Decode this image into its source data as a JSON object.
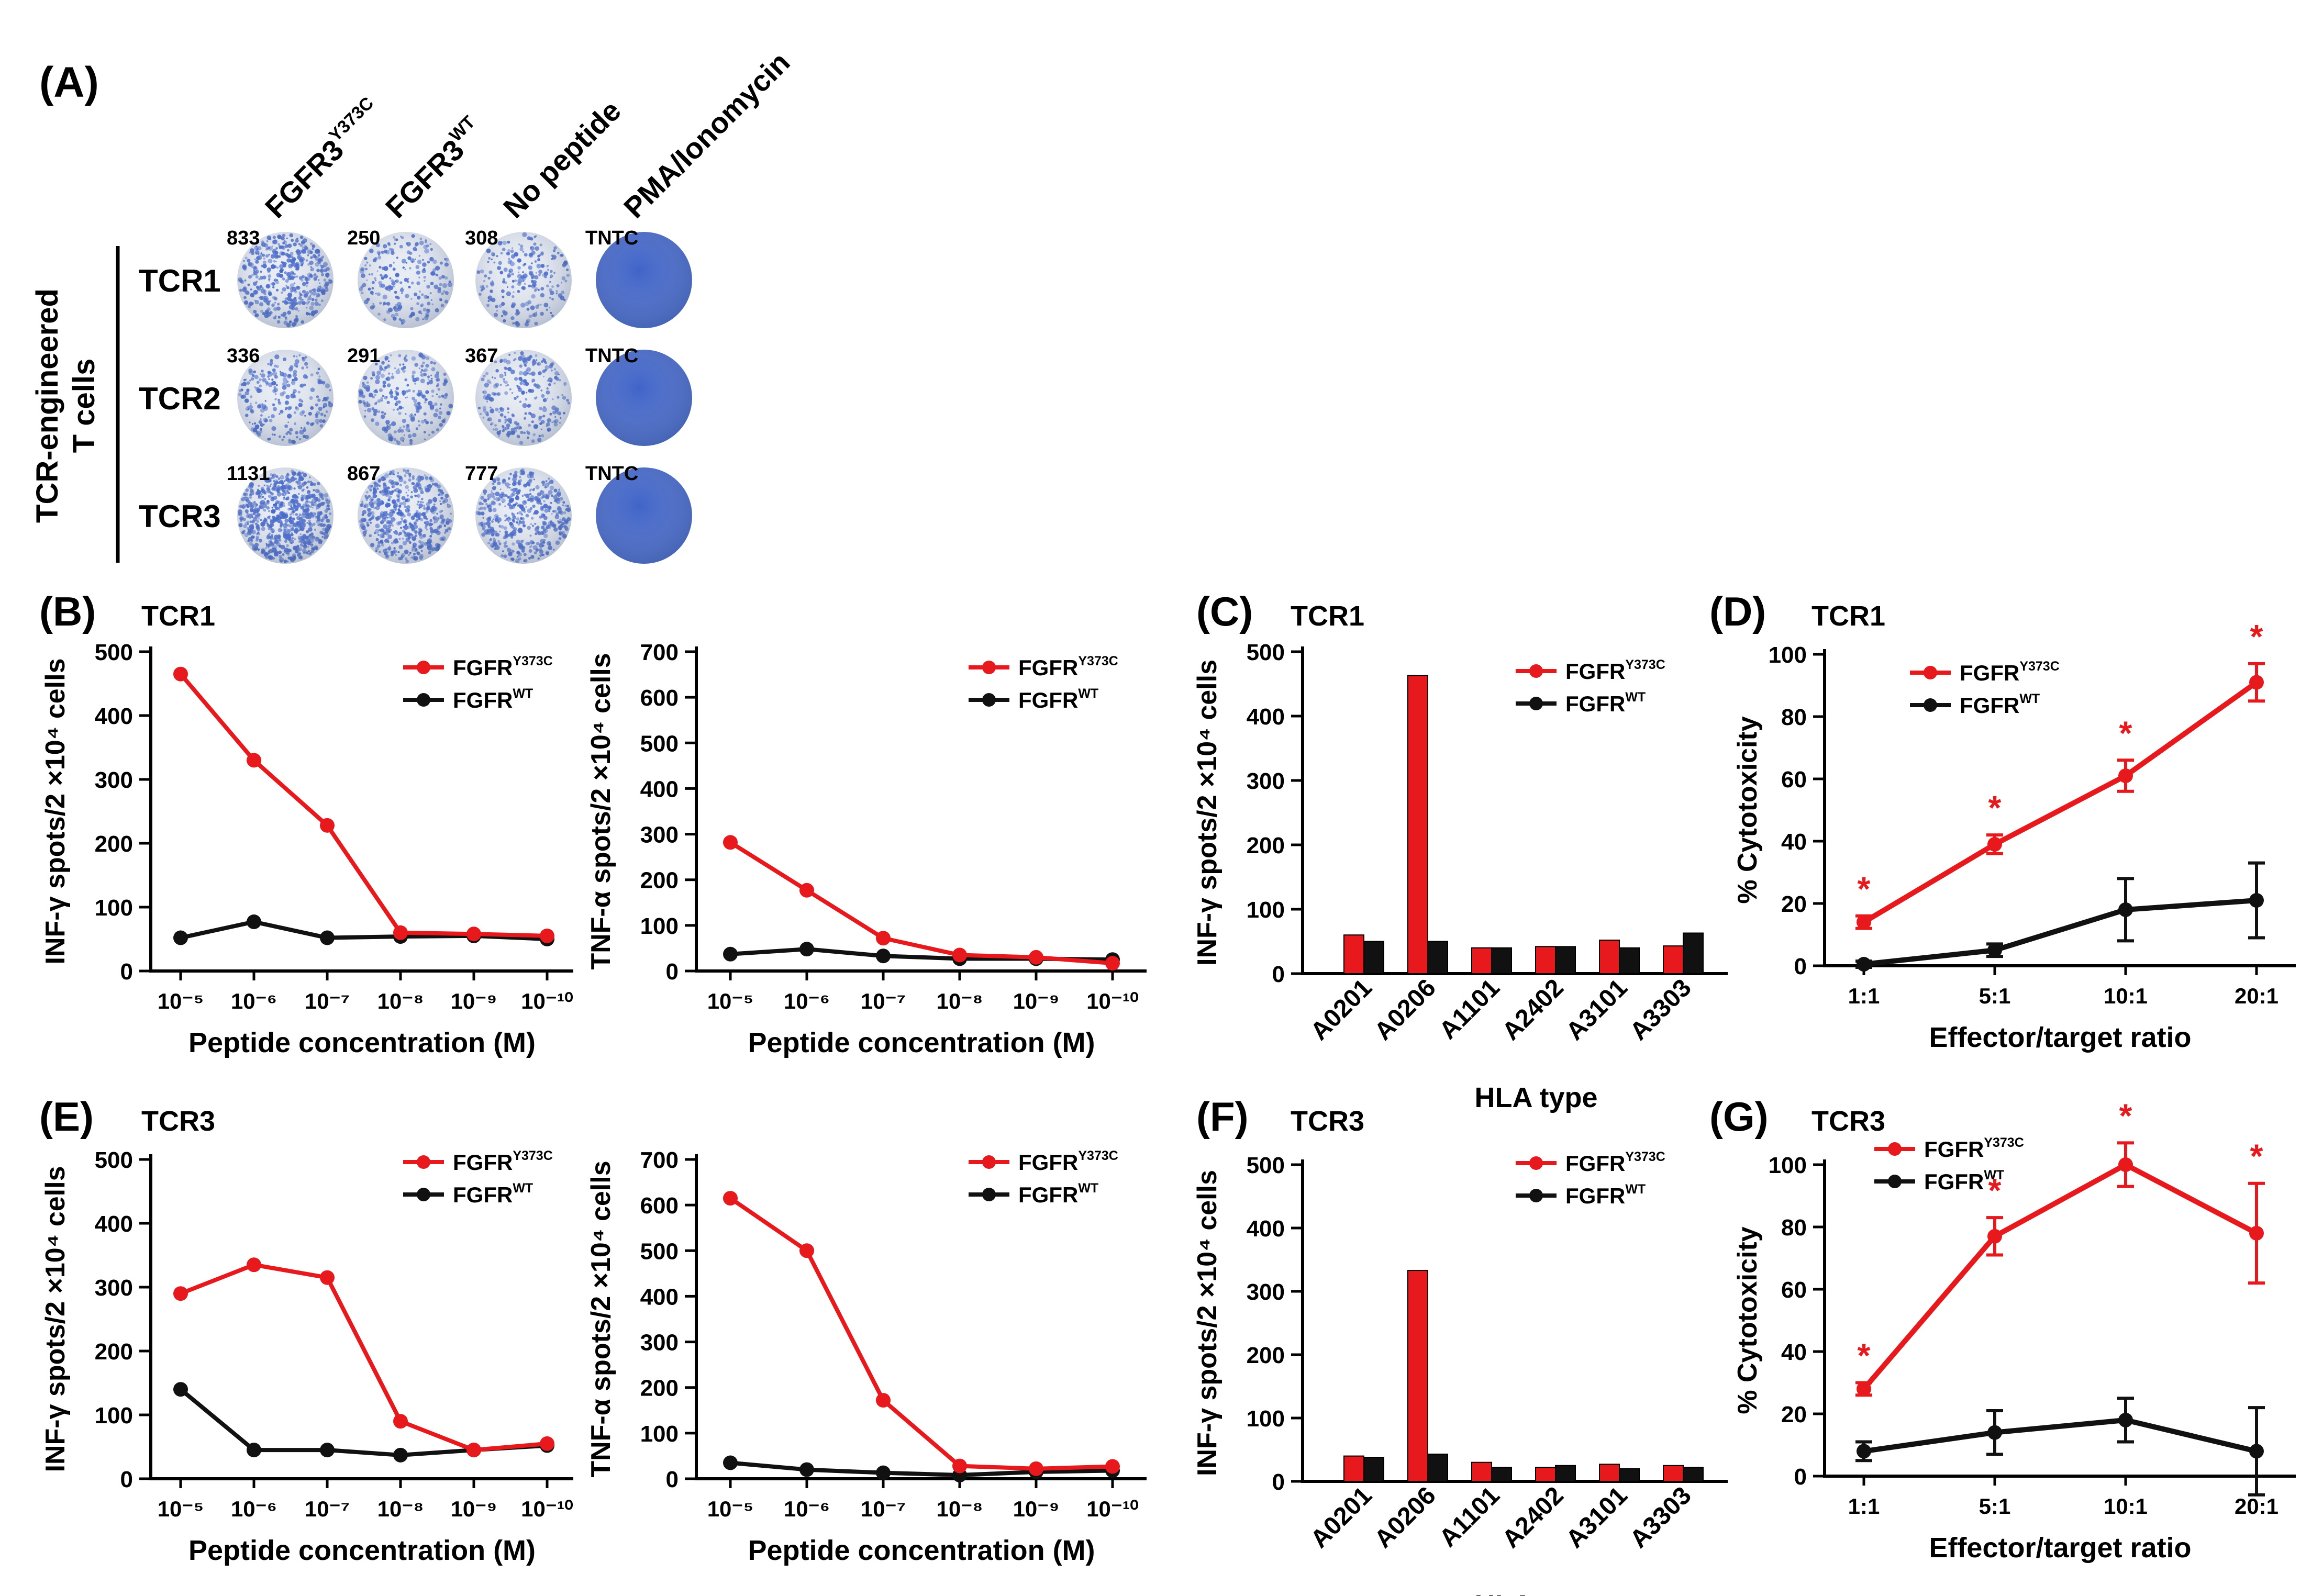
{
  "colors": {
    "mut": "#e8191c",
    "wt": "#111111",
    "well_light": "#e8ecf3",
    "well_blue": "#3f63c8"
  },
  "panelA": {
    "label": "(A)",
    "columns": [
      "FGFR3",
      "FGFR3",
      "No peptide",
      "PMA/Ionomycin"
    ],
    "column_sups": [
      "Y373C",
      "WT",
      "",
      ""
    ],
    "rows": [
      "TCR1",
      "TCR2",
      "TCR3"
    ],
    "side_label_1": "TCR-engineered",
    "side_label_2": "T cells",
    "counts": [
      [
        "833",
        "250",
        "308",
        "TNTC"
      ],
      [
        "336",
        "291",
        "367",
        "TNTC"
      ],
      [
        "1131",
        "867",
        "777",
        "TNTC"
      ]
    ],
    "well_density": [
      [
        0.45,
        0.15,
        0.15,
        1.0
      ],
      [
        0.18,
        0.2,
        0.2,
        1.0
      ],
      [
        0.85,
        0.55,
        0.45,
        1.0
      ]
    ]
  },
  "chart_data": [
    {
      "id": "B1",
      "type": "line",
      "panel_label": "(B)",
      "panel_title": "TCR1",
      "ylabel": "INF-γ spots/2 ×10⁴ cells",
      "xlabel": "Peptide concentration (M)",
      "categories": [
        "10⁻⁵",
        "10⁻⁶",
        "10⁻⁷",
        "10⁻⁸",
        "10⁻⁹",
        "10⁻¹⁰"
      ],
      "ylim": [
        0,
        500
      ],
      "yticks": [
        0,
        100,
        200,
        300,
        400,
        500
      ],
      "series": [
        {
          "name": "FGFR",
          "sup": "Y373C",
          "values": [
            465,
            330,
            228,
            60,
            58,
            55
          ]
        },
        {
          "name": "FGFR",
          "sup": "WT",
          "values": [
            52,
            77,
            52,
            54,
            55,
            50
          ]
        }
      ]
    },
    {
      "id": "B2",
      "type": "line",
      "panel_label": "",
      "panel_title": "",
      "ylabel": "TNF-α spots/2 ×10⁴ cells",
      "xlabel": "Peptide concentration (M)",
      "categories": [
        "10⁻⁵",
        "10⁻⁶",
        "10⁻⁷",
        "10⁻⁸",
        "10⁻⁹",
        "10⁻¹⁰"
      ],
      "ylim": [
        0,
        700
      ],
      "yticks": [
        0,
        100,
        200,
        300,
        400,
        500,
        600,
        700
      ],
      "series": [
        {
          "name": "FGFR",
          "sup": "Y373C",
          "values": [
            282,
            177,
            72,
            35,
            30,
            17
          ]
        },
        {
          "name": "FGFR",
          "sup": "WT",
          "values": [
            37,
            48,
            33,
            27,
            27,
            25
          ]
        }
      ]
    },
    {
      "id": "C",
      "type": "bar",
      "panel_label": "(C)",
      "panel_title": "TCR1",
      "ylabel": "INF-γ spots/2 ×10⁴ cells",
      "xlabel": "HLA type",
      "categories": [
        "A0201",
        "A0206",
        "A1101",
        "A2402",
        "A3101",
        "A3303"
      ],
      "ylim": [
        0,
        500
      ],
      "yticks": [
        0,
        100,
        200,
        300,
        400,
        500
      ],
      "series": [
        {
          "name": "FGFR",
          "sup": "Y373C",
          "values": [
            60,
            463,
            40,
            42,
            52,
            43
          ]
        },
        {
          "name": "FGFR",
          "sup": "WT",
          "values": [
            50,
            50,
            40,
            42,
            40,
            63
          ]
        }
      ]
    },
    {
      "id": "D",
      "type": "line",
      "panel_label": "(D)",
      "panel_title": "TCR1",
      "ylabel": "% Cytotoxicity",
      "xlabel": "Effector/target ratio",
      "categories": [
        "1:1",
        "5:1",
        "10:1",
        "20:1"
      ],
      "ylim": [
        0,
        100
      ],
      "yticks": [
        0,
        20,
        40,
        60,
        80,
        100
      ],
      "series": [
        {
          "name": "FGFR",
          "sup": "Y373C",
          "values": [
            14,
            39,
            61,
            91
          ],
          "errors": [
            2,
            3,
            5,
            6
          ]
        },
        {
          "name": "FGFR",
          "sup": "WT",
          "values": [
            0.5,
            5,
            18,
            21
          ],
          "errors": [
            1,
            2,
            10,
            12
          ]
        }
      ],
      "significance": [
        "*",
        "*",
        "*",
        "*"
      ]
    },
    {
      "id": "E1",
      "type": "line",
      "panel_label": "(E)",
      "panel_title": "TCR3",
      "ylabel": "INF-γ spots/2 ×10⁴ cells",
      "xlabel": "Peptide concentration (M)",
      "categories": [
        "10⁻⁵",
        "10⁻⁶",
        "10⁻⁷",
        "10⁻⁸",
        "10⁻⁹",
        "10⁻¹⁰"
      ],
      "ylim": [
        0,
        500
      ],
      "yticks": [
        0,
        100,
        200,
        300,
        400,
        500
      ],
      "series": [
        {
          "name": "FGFR",
          "sup": "Y373C",
          "values": [
            290,
            335,
            315,
            90,
            45,
            55
          ]
        },
        {
          "name": "FGFR",
          "sup": "WT",
          "values": [
            140,
            45,
            45,
            37,
            45,
            52
          ]
        }
      ]
    },
    {
      "id": "E2",
      "type": "line",
      "panel_label": "",
      "panel_title": "",
      "ylabel": "TNF-α spots/2 ×10⁴ cells",
      "xlabel": "Peptide concentration (M)",
      "categories": [
        "10⁻⁵",
        "10⁻⁶",
        "10⁻⁷",
        "10⁻⁸",
        "10⁻⁹",
        "10⁻¹⁰"
      ],
      "ylim": [
        0,
        700
      ],
      "yticks": [
        0,
        100,
        200,
        300,
        400,
        500,
        600,
        700
      ],
      "series": [
        {
          "name": "FGFR",
          "sup": "Y373C",
          "values": [
            615,
            500,
            172,
            28,
            22,
            27
          ]
        },
        {
          "name": "FGFR",
          "sup": "WT",
          "values": [
            35,
            20,
            13,
            8,
            15,
            18
          ]
        }
      ]
    },
    {
      "id": "F",
      "type": "bar",
      "panel_label": "(F)",
      "panel_title": "TCR3",
      "ylabel": "INF-γ spots/2 ×10⁴ cells",
      "xlabel": "HLA type",
      "categories": [
        "A0201",
        "A0206",
        "A1101",
        "A2402",
        "A3101",
        "A3303"
      ],
      "ylim": [
        0,
        500
      ],
      "yticks": [
        0,
        100,
        200,
        300,
        400,
        500
      ],
      "series": [
        {
          "name": "FGFR",
          "sup": "Y373C",
          "values": [
            40,
            333,
            30,
            22,
            27,
            25
          ]
        },
        {
          "name": "FGFR",
          "sup": "WT",
          "values": [
            38,
            43,
            22,
            25,
            20,
            22
          ]
        }
      ]
    },
    {
      "id": "G",
      "type": "line",
      "panel_label": "(G)",
      "panel_title": "TCR3",
      "ylabel": "% Cytotoxicity",
      "xlabel": "Effector/target ratio",
      "categories": [
        "1:1",
        "5:1",
        "10:1",
        "20:1"
      ],
      "ylim": [
        0,
        100
      ],
      "yticks": [
        0,
        20,
        40,
        60,
        80,
        100
      ],
      "series": [
        {
          "name": "FGFR",
          "sup": "Y373C",
          "values": [
            28,
            77,
            100,
            78
          ],
          "errors": [
            2,
            6,
            7,
            16
          ]
        },
        {
          "name": "FGFR",
          "sup": "WT",
          "values": [
            8,
            14,
            18,
            8
          ],
          "errors": [
            3,
            7,
            7,
            14
          ]
        }
      ],
      "significance": [
        "*",
        "*",
        "*",
        "*"
      ]
    }
  ]
}
